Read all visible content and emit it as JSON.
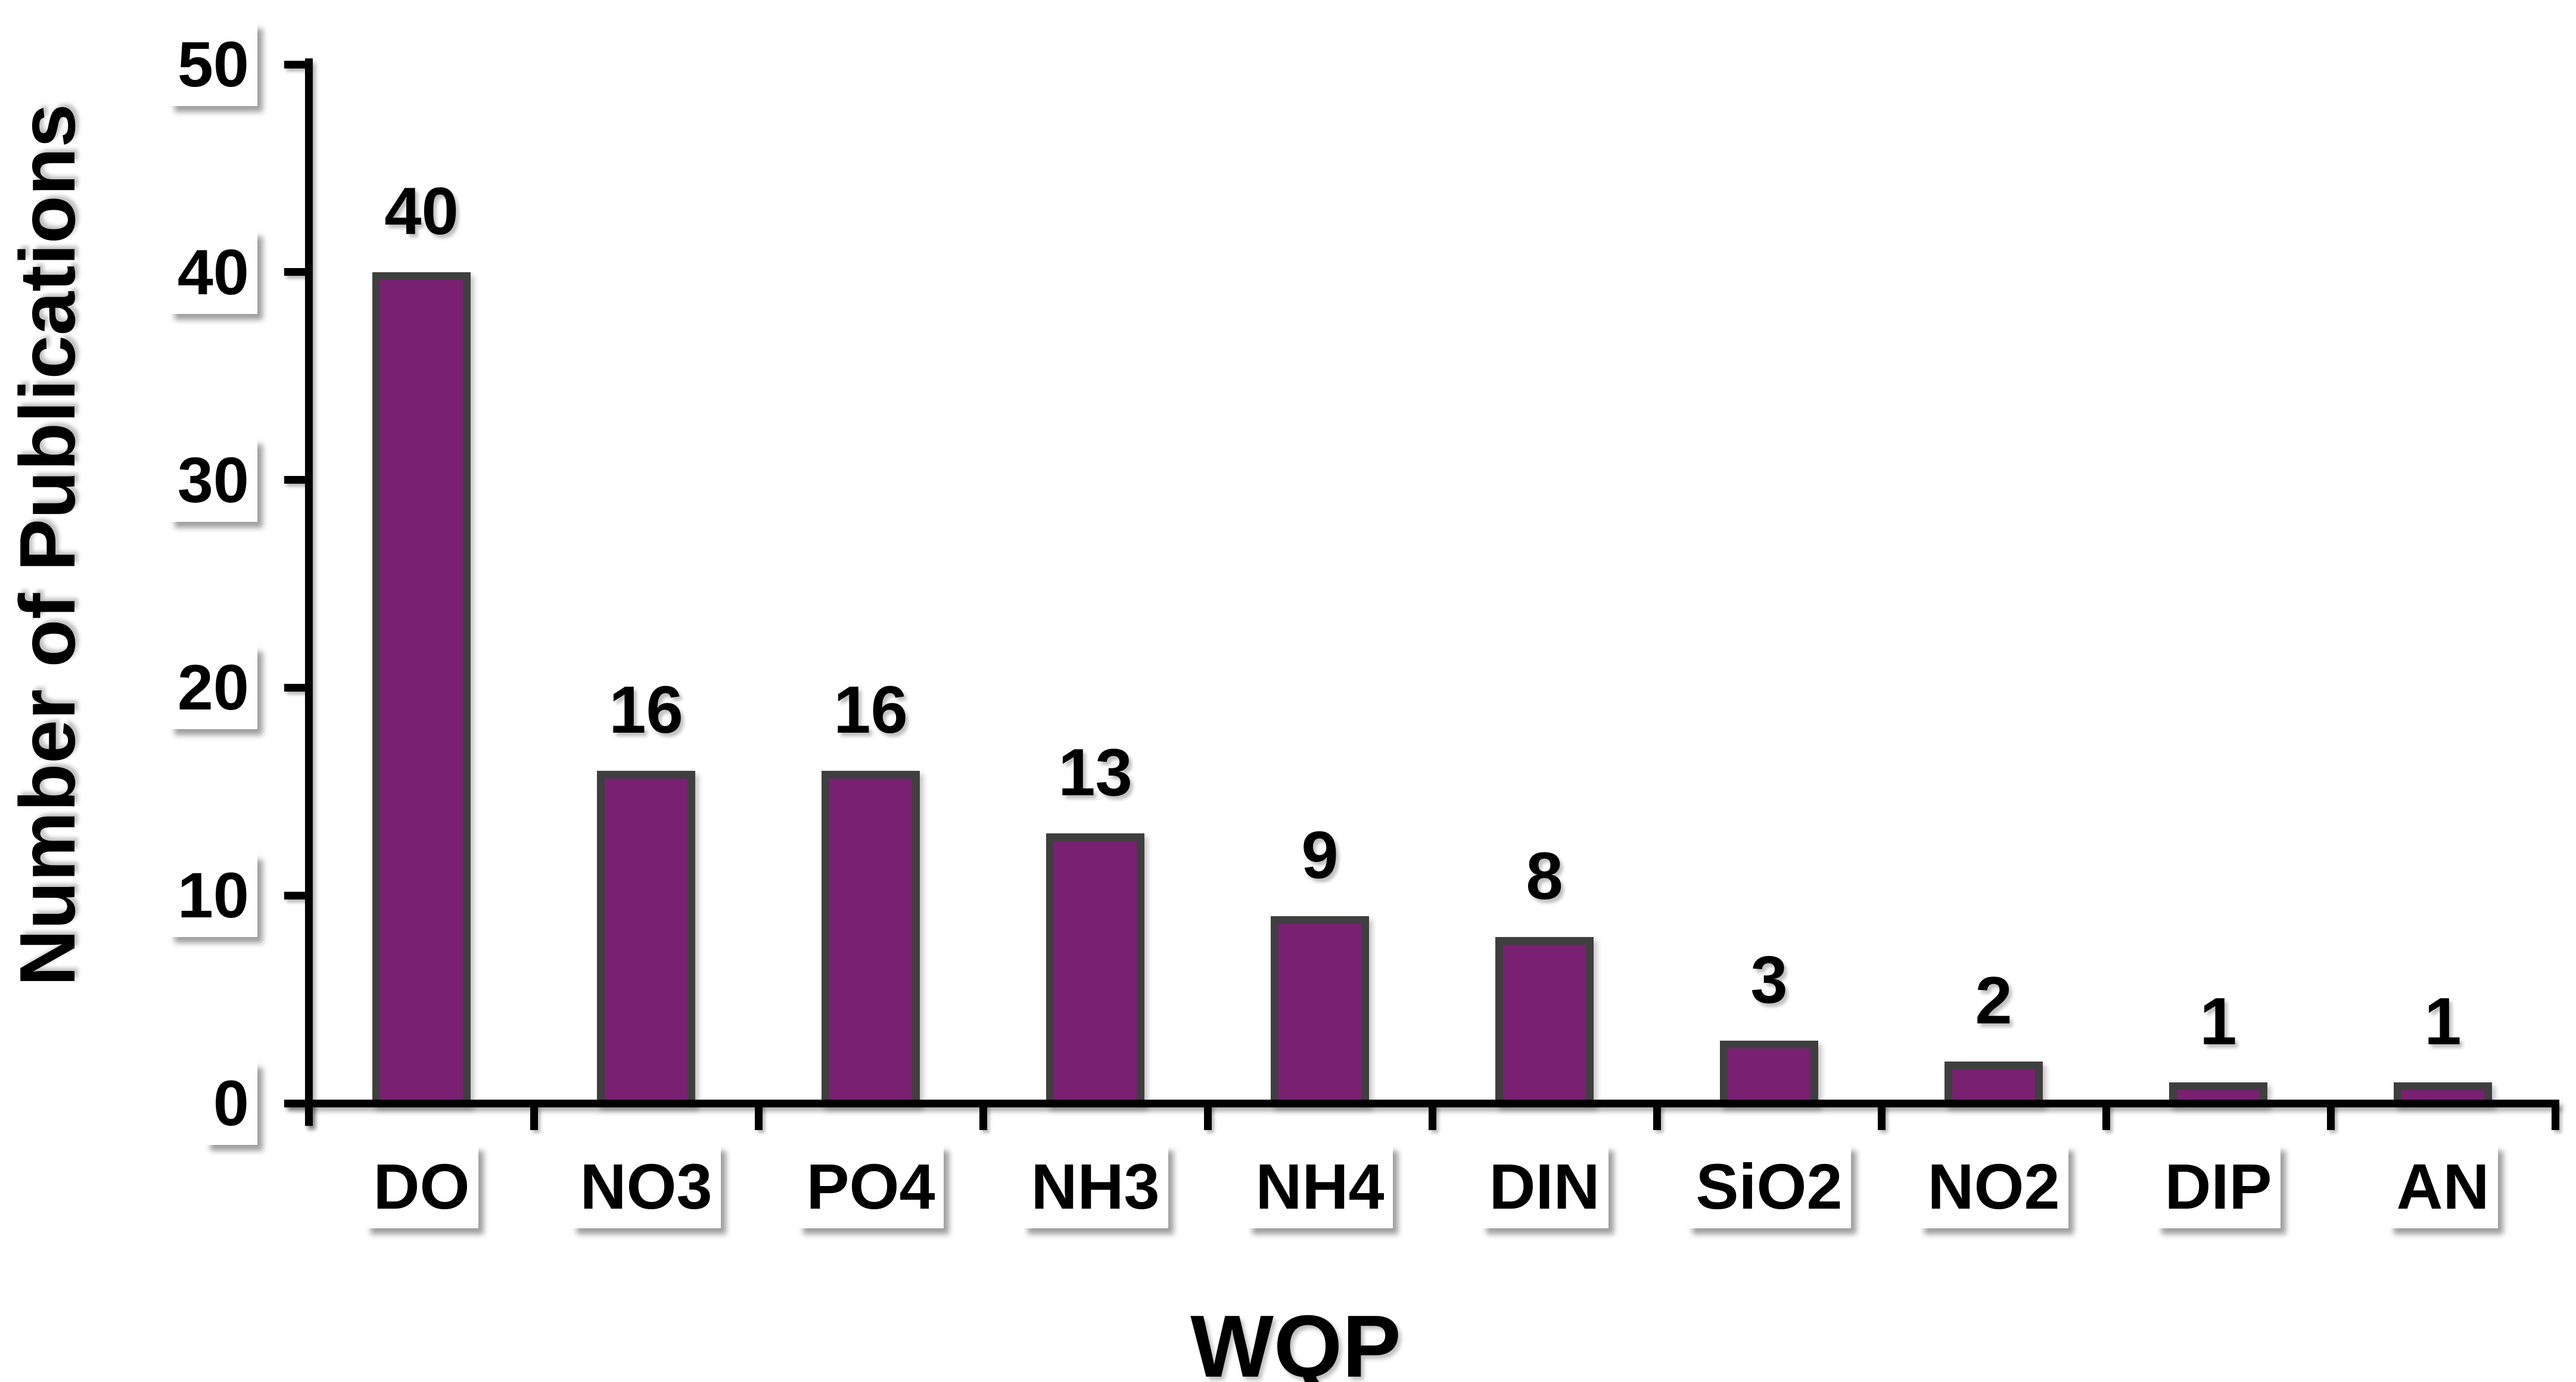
{
  "chart_data": {
    "type": "bar",
    "title": "",
    "categories": [
      "DO",
      "NO3",
      "PO4",
      "NH3",
      "NH4",
      "DIN",
      "SiO2",
      "NO2",
      "DIP",
      "AN"
    ],
    "values": [
      40,
      16,
      16,
      13,
      9,
      8,
      3,
      2,
      1,
      1
    ],
    "xlabel": "WQP",
    "ylabel": "Number of Publications",
    "ylim": [
      0,
      50
    ],
    "yticks": [
      "0",
      "10",
      "20",
      "30",
      "40",
      "50"
    ],
    "grid": false,
    "legend": "none",
    "layout_hints": {
      "bar_fill_color": "#7A2072",
      "bar_border_color": "#3F3F3F",
      "axis_color": "#000000",
      "text_color": "#000000",
      "tick_label_box_bg": "#FFFFFF",
      "category_label_box_bg": "#FFFFFF",
      "value_labels_shown": true
    }
  }
}
